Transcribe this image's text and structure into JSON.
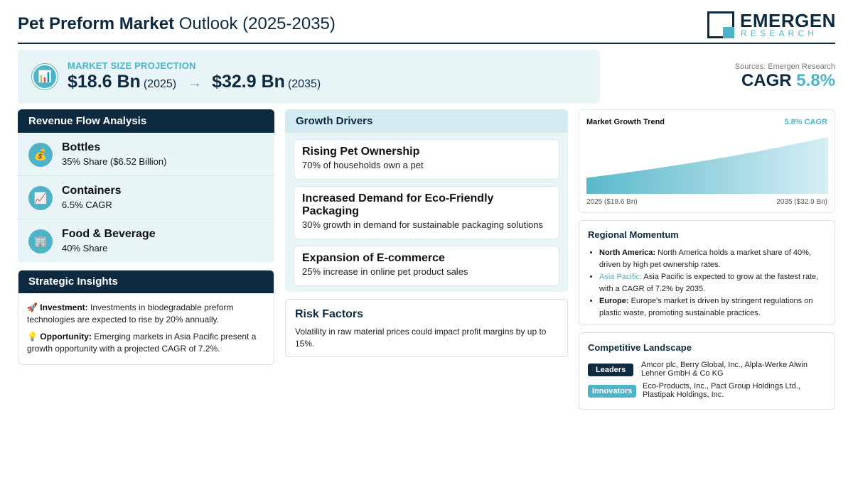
{
  "header": {
    "title_bold": "Pet Preform Market",
    "title_rest": "Outlook (2025-2035)",
    "logo_main": "EMERGEN",
    "logo_sub": "RESEARCH"
  },
  "projection": {
    "icon": "bar-chart-icon",
    "label": "MARKET SIZE PROJECTION",
    "start_value": "$18.6 Bn",
    "start_year": "(2025)",
    "arrow": "→",
    "end_value": "$32.9 Bn",
    "end_year": "(2035)"
  },
  "sources": "Sources: Emergen Research",
  "cagr": {
    "label": "CAGR",
    "value": "5.8%"
  },
  "revenue": {
    "heading": "Revenue Flow Analysis",
    "items": [
      {
        "icon": "money-bag-icon",
        "glyph": "💰",
        "title": "Bottles",
        "sub": "35% Share ($6.52 Billion)"
      },
      {
        "icon": "chart-increasing-icon",
        "glyph": "📈",
        "title": "Containers",
        "sub": "6.5% CAGR"
      },
      {
        "icon": "office-building-icon",
        "glyph": "🏢",
        "title": "Food & Beverage",
        "sub": "40% Share"
      }
    ]
  },
  "strategic": {
    "heading": "Strategic Insights",
    "items": [
      {
        "glyph": "🚀",
        "label": "Investment:",
        "text": "Investments in biodegradable preform technologies are expected to rise by 20% annually."
      },
      {
        "glyph": "💡",
        "label": "Opportunity:",
        "text": "Emerging markets in Asia Pacific present a growth opportunity with a projected CAGR of 7.2%."
      }
    ]
  },
  "drivers": {
    "heading": "Growth Drivers",
    "items": [
      {
        "title": "Rising Pet Ownership",
        "sub": "70% of households own a pet"
      },
      {
        "title": "Increased Demand for Eco-Friendly Packaging",
        "sub": "30% growth in demand for sustainable packaging solutions"
      },
      {
        "title": "Expansion of E-commerce",
        "sub": "25% increase in online pet product sales"
      }
    ]
  },
  "risk": {
    "heading": "Risk Factors",
    "text": "Volatility in raw material prices could impact profit margins by up to 15%."
  },
  "trend": {
    "title": "Market Growth Trend",
    "cagr_label": "5.8% CAGR",
    "start_label": "2025 ($18.6 Bn)",
    "end_label": "2035 ($32.9 Bn)"
  },
  "chart_data": {
    "type": "area",
    "title": "Market Growth Trend",
    "x": [
      "2025",
      "2035"
    ],
    "series": [
      {
        "values": [
          18.6,
          32.9
        ]
      }
    ],
    "annotation": "5.8% CAGR",
    "grid": false,
    "colors": {
      "fill": "#4fb3c8"
    }
  },
  "regional": {
    "heading": "Regional Momentum",
    "items": [
      {
        "label": "North America:",
        "text": "North America holds a market share of 40%, driven by high pet ownership rates.",
        "accent": false
      },
      {
        "label": "Asia Pacific:",
        "text": "Asia Pacific is expected to grow at the fastest rate, with a CAGR of 7.2% by 2035.",
        "accent": true
      },
      {
        "label": "Europe:",
        "text": "Europe's market is driven by stringent regulations on plastic waste, promoting sustainable practices.",
        "accent": false
      }
    ]
  },
  "competitive": {
    "heading": "Competitive Landscape",
    "leaders_label": "Leaders",
    "leaders": "Amcor plc, Berry Global, Inc., Alpla-Werke Alwin Lehner GmbH & Co KG",
    "innovators_label": "Innovators",
    "innovators": "Eco-Products, Inc., Pact Group Holdings Ltd., Plastipak Holdings, Inc."
  },
  "colors": {
    "navy": "#0d2a40",
    "accent": "#4fb3c8",
    "panel": "#e9f4f7"
  }
}
